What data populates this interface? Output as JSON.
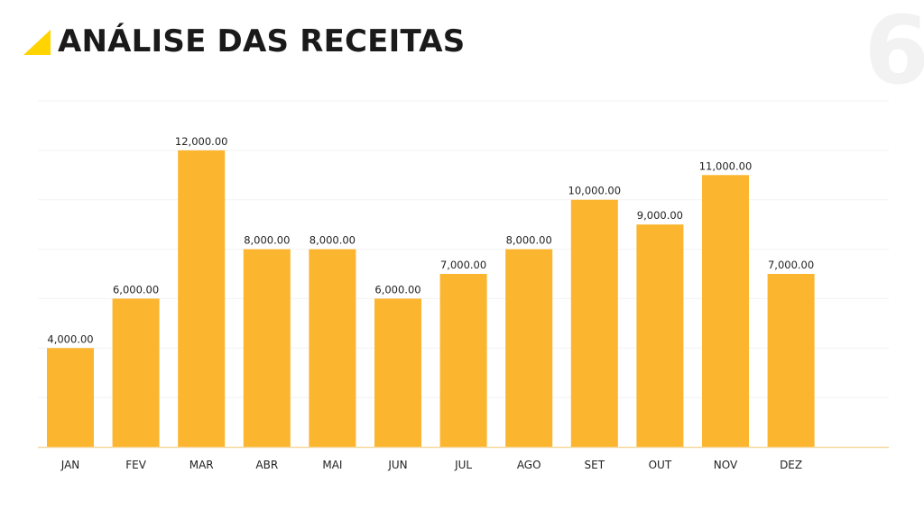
{
  "slide": {
    "title": "ANÁLISE DAS RECEITAS",
    "page_number": "6",
    "accent_color": "#FFD400"
  },
  "chart_data": {
    "type": "bar",
    "title": "",
    "xlabel": "",
    "ylabel": "",
    "categories": [
      "JAN",
      "FEV",
      "MAR",
      "ABR",
      "MAI",
      "JUN",
      "JUL",
      "AGO",
      "SET",
      "OUT",
      "NOV",
      "DEZ"
    ],
    "values": [
      4000,
      6000,
      12000,
      8000,
      8000,
      6000,
      7000,
      8000,
      10000,
      9000,
      11000,
      7000
    ],
    "data_labels": [
      "4,000.00",
      "6,000.00",
      "12,000.00",
      "8,000.00",
      "8,000.00",
      "6,000.00",
      "7,000.00",
      "8,000.00",
      "10,000.00",
      "9,000.00",
      "11,000.00",
      "7,000.00"
    ],
    "ylim": [
      0,
      14000
    ],
    "grid": true,
    "bar_color": "#FBB52E",
    "axis_color": "#F5D9A0",
    "grid_color": "#F2F2F2"
  }
}
